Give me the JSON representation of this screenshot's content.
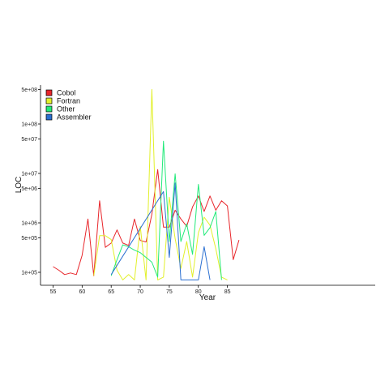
{
  "chart_data": {
    "type": "line",
    "title": "",
    "xlabel": "Year",
    "ylabel": "LOC",
    "y_scale": "log",
    "xlim": [
      54,
      88
    ],
    "ylim": [
      85000,
      650000000
    ],
    "x_ticks": [
      55,
      60,
      65,
      70,
      75,
      80,
      85
    ],
    "y_ticks": [
      {
        "value": 100000,
        "label": "1e+05"
      },
      {
        "value": 500000,
        "label": "5e+05"
      },
      {
        "value": 1000000,
        "label": "1e+06"
      },
      {
        "value": 5000000,
        "label": "5e+06"
      },
      {
        "value": 10000000,
        "label": "1e+07"
      },
      {
        "value": 50000000,
        "label": "5e+07"
      },
      {
        "value": 100000000,
        "label": "1e+08"
      },
      {
        "value": 500000000,
        "label": "5e+08"
      }
    ],
    "grid": false,
    "legend_position": "top-left",
    "series": [
      {
        "name": "Cobol",
        "color": "#e8262b",
        "points": [
          [
            55,
            130000
          ],
          [
            56,
            110000
          ],
          [
            57,
            90000
          ],
          [
            58,
            97000
          ],
          [
            59,
            90000
          ],
          [
            60,
            220000
          ],
          [
            61,
            1200000
          ],
          [
            62,
            85000
          ],
          [
            63,
            2800000
          ],
          [
            64,
            320000
          ],
          [
            65,
            390000
          ],
          [
            66,
            720000
          ],
          [
            67,
            390000
          ],
          [
            68,
            350000
          ],
          [
            69,
            1200000
          ],
          [
            70,
            440000
          ],
          [
            71,
            410000
          ],
          [
            72,
            1500000
          ],
          [
            73,
            12000000
          ],
          [
            74,
            820000
          ],
          [
            75,
            820000
          ],
          [
            76,
            1800000
          ],
          [
            77,
            1200000
          ],
          [
            78,
            850000
          ],
          [
            79,
            2100000
          ],
          [
            80,
            3500000
          ],
          [
            81,
            1700000
          ],
          [
            82,
            3500000
          ],
          [
            83,
            1800000
          ],
          [
            84,
            2800000
          ],
          [
            85,
            2200000
          ],
          [
            86,
            180000
          ],
          [
            87,
            450000
          ]
        ]
      },
      {
        "name": "Fortran",
        "color": "#e2f02a",
        "points": [
          [
            62,
            85000
          ],
          [
            63,
            550000
          ],
          [
            64,
            550000
          ],
          [
            65,
            460000
          ],
          [
            66,
            110000
          ],
          [
            67,
            70000
          ],
          [
            68,
            90000
          ],
          [
            69,
            70000
          ],
          [
            70,
            850000
          ],
          [
            71,
            70000
          ],
          [
            72,
            500000000
          ],
          [
            73,
            70000
          ],
          [
            74,
            80000
          ],
          [
            75,
            3300000
          ],
          [
            76,
            480000
          ],
          [
            77,
            120000
          ],
          [
            78,
            420000
          ],
          [
            79,
            80000
          ],
          [
            80,
            630000
          ],
          [
            81,
            1300000
          ],
          [
            82,
            900000
          ],
          [
            83,
            300000
          ],
          [
            84,
            80000
          ],
          [
            85,
            70000
          ]
        ]
      },
      {
        "name": "Other",
        "color": "#22ea7a",
        "points": [
          [
            65,
            85000
          ],
          [
            66,
            180000
          ],
          [
            67,
            360000
          ],
          [
            68,
            330000
          ],
          [
            69,
            280000
          ],
          [
            70,
            250000
          ],
          [
            71,
            200000
          ],
          [
            72,
            160000
          ],
          [
            73,
            80000
          ],
          [
            74,
            45000000
          ],
          [
            75,
            420000
          ],
          [
            76,
            9800000
          ],
          [
            77,
            420000
          ],
          [
            78,
            960000
          ],
          [
            79,
            230000
          ],
          [
            80,
            6000000
          ],
          [
            81,
            560000
          ],
          [
            82,
            800000
          ],
          [
            83,
            1700000
          ],
          [
            84,
            70000
          ]
        ]
      },
      {
        "name": "Assembler",
        "color": "#2a6fd1",
        "points": [
          [
            65,
            90000
          ],
          [
            74,
            4300000
          ],
          [
            75,
            200000
          ],
          [
            76,
            6400000
          ],
          [
            77,
            70000
          ],
          [
            80,
            70000
          ],
          [
            81,
            330000
          ],
          [
            82,
            70000
          ]
        ]
      }
    ]
  }
}
